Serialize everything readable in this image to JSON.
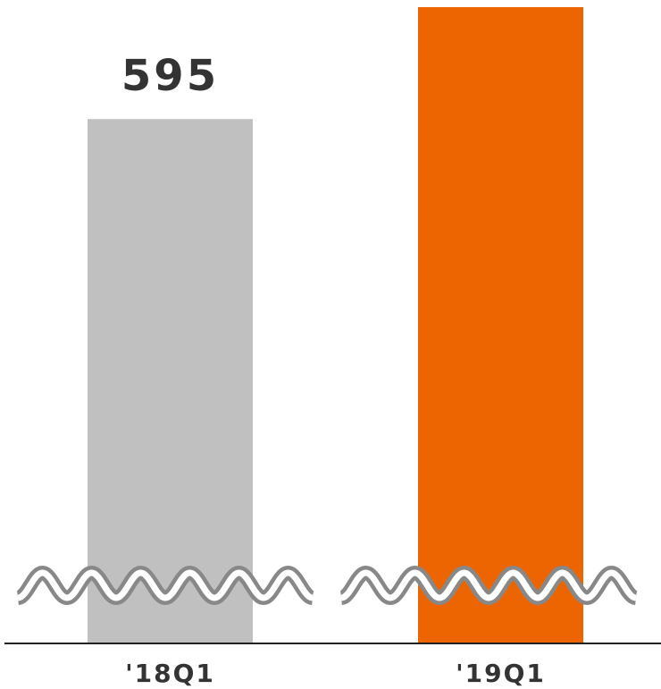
{
  "chart_data": {
    "type": "bar",
    "categories": [
      "'18Q1",
      "'19Q1"
    ],
    "values": [
      595,
      722
    ],
    "colors": [
      "#c0c0c0",
      "#ec6500"
    ],
    "show_value_labels": [
      true,
      false
    ],
    "axis_break": true
  }
}
